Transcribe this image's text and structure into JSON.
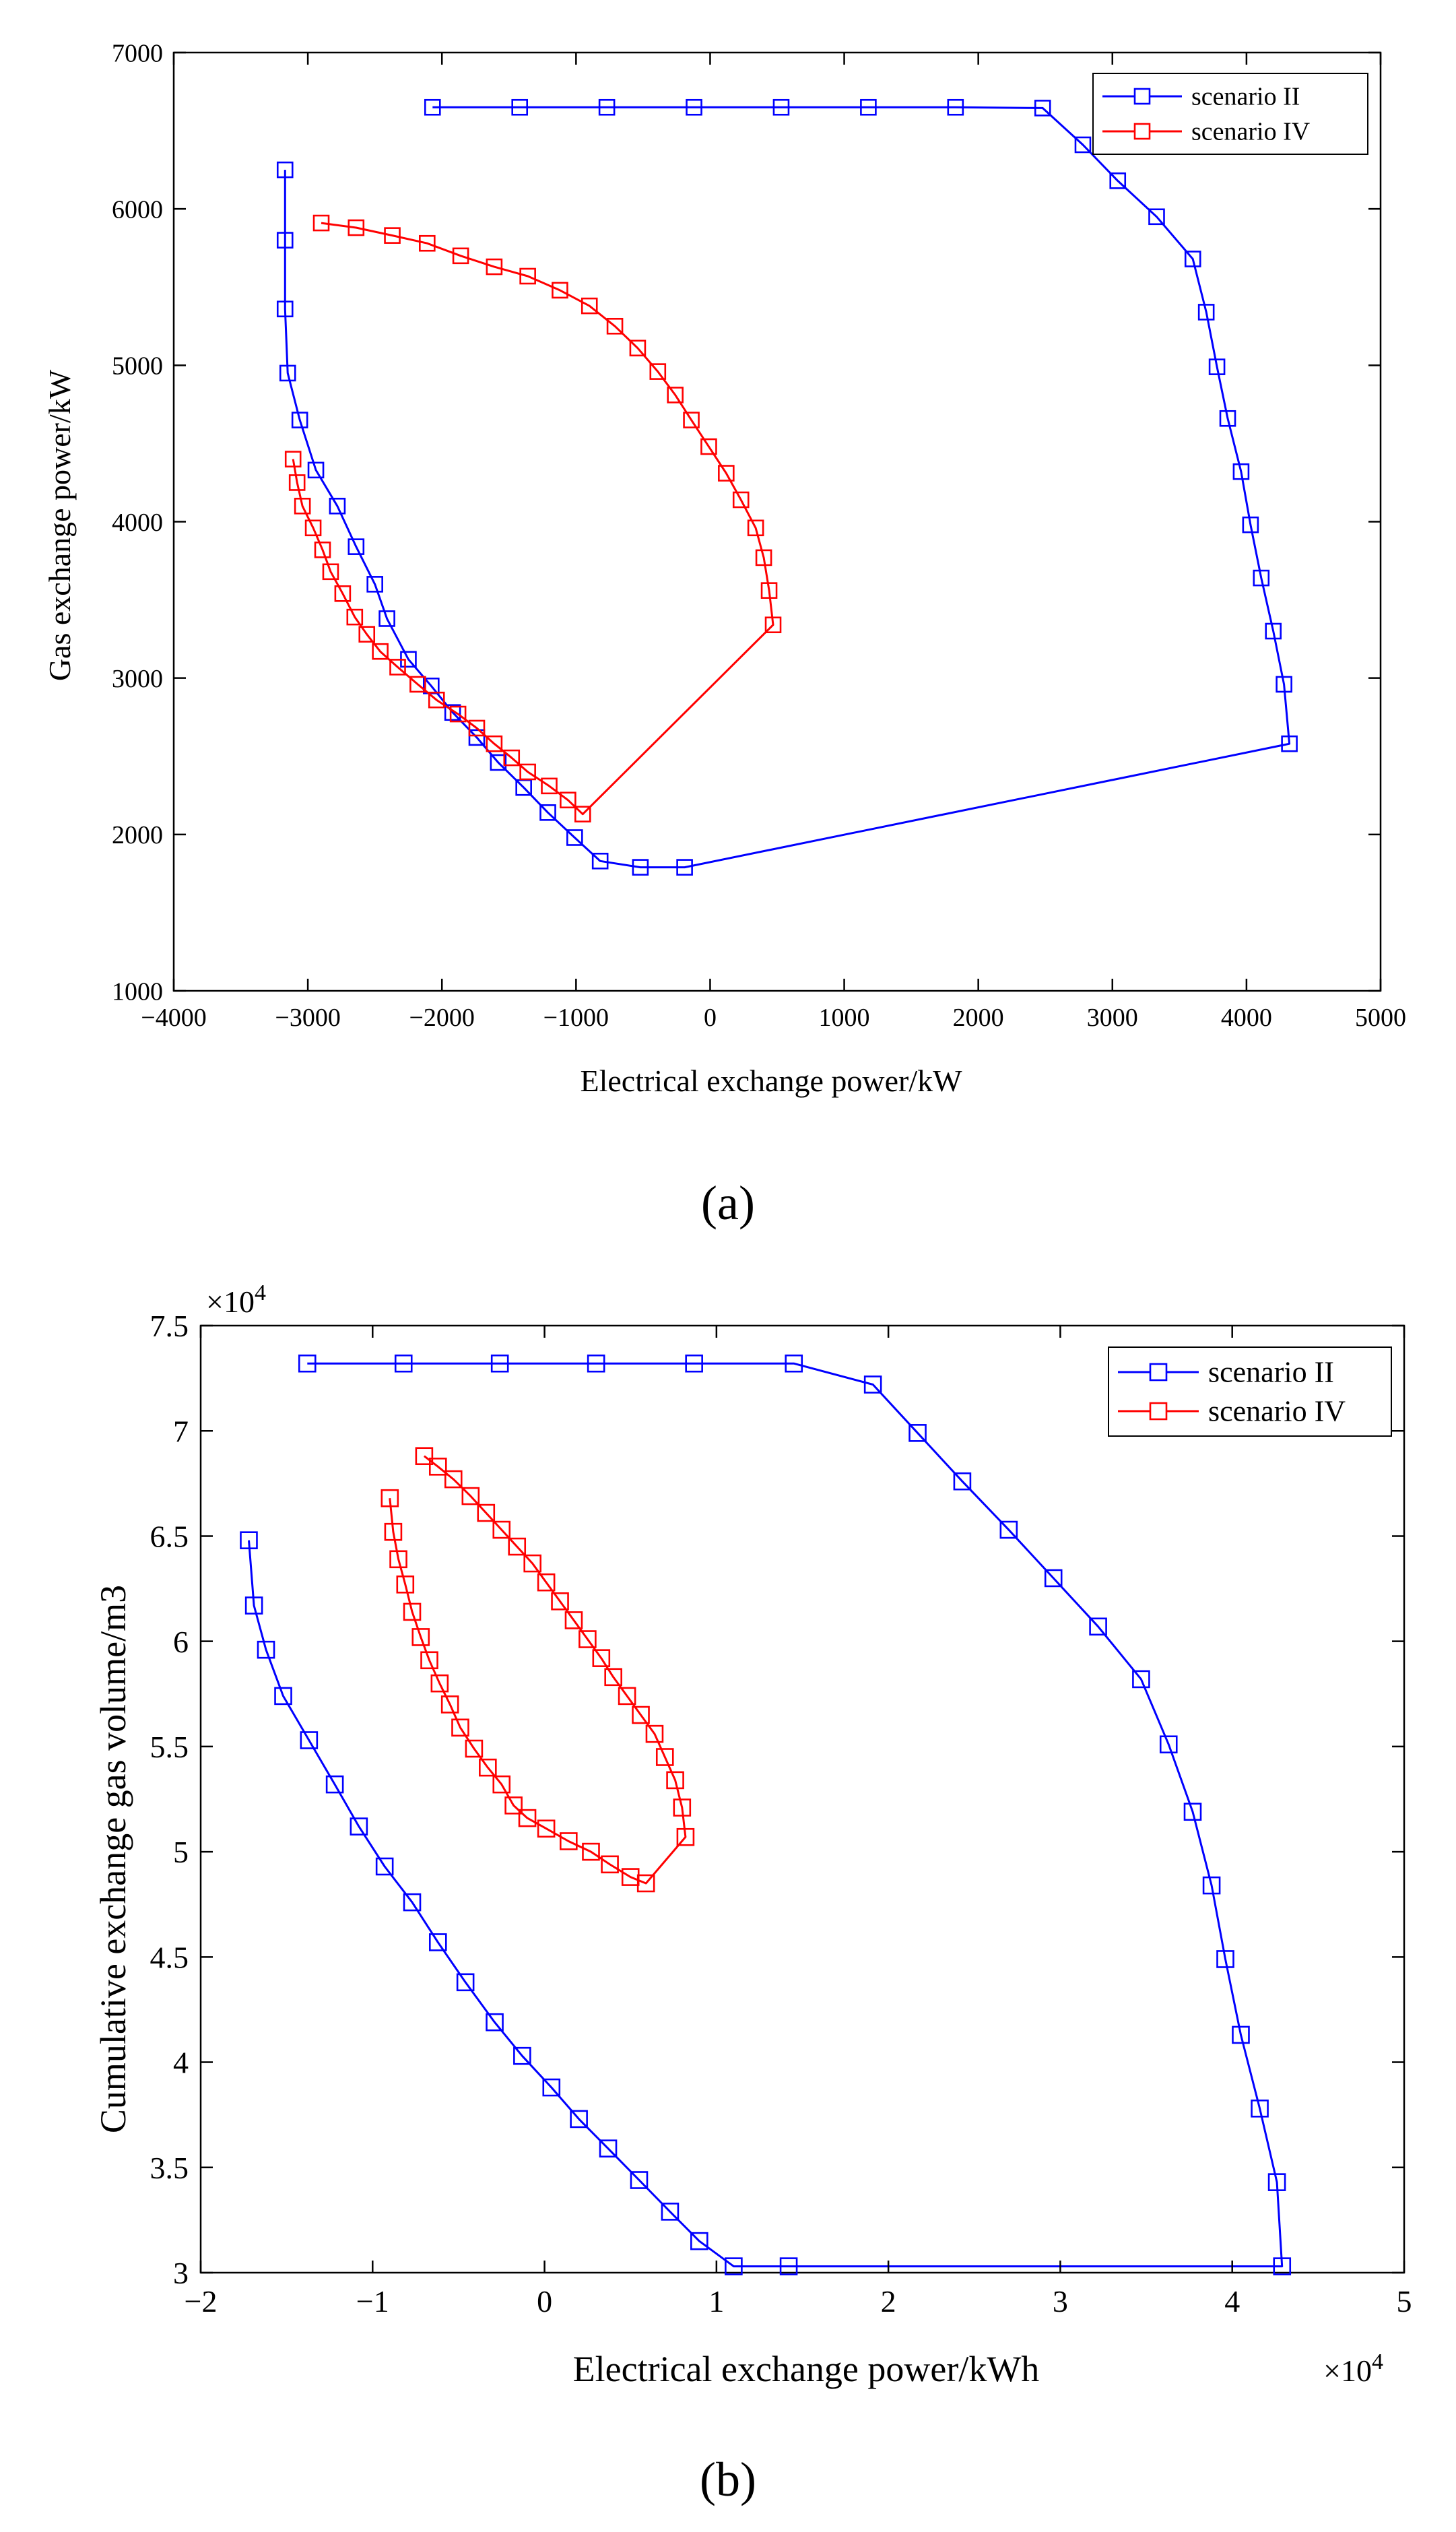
{
  "figure": {
    "background": "#ffffff"
  },
  "chart_data": [
    {
      "panel_label": "(a)",
      "type": "line",
      "title": "",
      "xlabel": "Electrical exchange power/kW",
      "ylabel": "Gas exchange power/kW",
      "xlim": [
        -4000,
        5000
      ],
      "ylim": [
        1000,
        7000
      ],
      "xticks": [
        -4000,
        -3000,
        -2000,
        -1000,
        0,
        1000,
        2000,
        3000,
        4000,
        5000
      ],
      "yticks": [
        1000,
        2000,
        3000,
        4000,
        5000,
        6000,
        7000
      ],
      "xtick_labels": [
        "−4000",
        "−3000",
        "−2000",
        "−1000",
        "0",
        "1000",
        "2000",
        "3000",
        "4000",
        "5000"
      ],
      "ytick_labels": [
        "1000",
        "2000",
        "3000",
        "4000",
        "5000",
        "6000",
        "7000"
      ],
      "grid": false,
      "legend_position": "top-right",
      "series": [
        {
          "name": "scenario II",
          "color": "#0000ff",
          "marker": "square",
          "points": [
            [
              -2070,
              6650
            ],
            [
              -1420,
              6650
            ],
            [
              -770,
              6650
            ],
            [
              -120,
              6650
            ],
            [
              530,
              6650
            ],
            [
              1180,
              6650
            ],
            [
              1830,
              6650
            ],
            [
              2480,
              6645
            ],
            [
              2780,
              6410
            ],
            [
              3040,
              6180
            ],
            [
              3330,
              5950
            ],
            [
              3600,
              5680
            ],
            [
              3700,
              5340
            ],
            [
              3780,
              4990
            ],
            [
              3860,
              4660
            ],
            [
              3960,
              4320
            ],
            [
              4030,
              3980
            ],
            [
              4110,
              3640
            ],
            [
              4200,
              3300
            ],
            [
              4280,
              2960
            ],
            [
              4320,
              2580
            ],
            [
              -190,
              1790
            ],
            [
              -520,
              1790
            ],
            [
              -820,
              1830
            ],
            [
              -1010,
              1980
            ],
            [
              -1210,
              2140
            ],
            [
              -1390,
              2300
            ],
            [
              -1580,
              2460
            ],
            [
              -1740,
              2620
            ],
            [
              -1920,
              2780
            ],
            [
              -2080,
              2950
            ],
            [
              -2250,
              3120
            ],
            [
              -2410,
              3380
            ],
            [
              -2500,
              3600
            ],
            [
              -2640,
              3840
            ],
            [
              -2780,
              4100
            ],
            [
              -2940,
              4330
            ],
            [
              -3060,
              4650
            ],
            [
              -3150,
              4950
            ],
            [
              -3170,
              5360
            ],
            [
              -3170,
              5800
            ],
            [
              -3170,
              6250
            ]
          ]
        },
        {
          "name": "scenario IV",
          "color": "#ff0000",
          "marker": "square",
          "points": [
            [
              -2900,
              5910
            ],
            [
              -2640,
              5880
            ],
            [
              -2370,
              5830
            ],
            [
              -2110,
              5780
            ],
            [
              -1860,
              5700
            ],
            [
              -1610,
              5630
            ],
            [
              -1360,
              5570
            ],
            [
              -1120,
              5480
            ],
            [
              -900,
              5380
            ],
            [
              -710,
              5250
            ],
            [
              -540,
              5110
            ],
            [
              -390,
              4960
            ],
            [
              -260,
              4810
            ],
            [
              -140,
              4650
            ],
            [
              -10,
              4480
            ],
            [
              120,
              4310
            ],
            [
              230,
              4140
            ],
            [
              340,
              3960
            ],
            [
              400,
              3770
            ],
            [
              440,
              3560
            ],
            [
              470,
              3340
            ],
            [
              -950,
              2130
            ],
            [
              -1060,
              2220
            ],
            [
              -1200,
              2310
            ],
            [
              -1360,
              2400
            ],
            [
              -1480,
              2490
            ],
            [
              -1610,
              2580
            ],
            [
              -1740,
              2680
            ],
            [
              -1880,
              2770
            ],
            [
              -2040,
              2860
            ],
            [
              -2180,
              2960
            ],
            [
              -2330,
              3070
            ],
            [
              -2460,
              3170
            ],
            [
              -2560,
              3280
            ],
            [
              -2650,
              3390
            ],
            [
              -2740,
              3540
            ],
            [
              -2830,
              3680
            ],
            [
              -2890,
              3820
            ],
            [
              -2960,
              3960
            ],
            [
              -3040,
              4100
            ],
            [
              -3080,
              4250
            ],
            [
              -3110,
              4400
            ]
          ]
        }
      ]
    },
    {
      "panel_label": "(b)",
      "type": "line",
      "title": "",
      "xlabel": "Electrical exchange power/kWh",
      "ylabel": "Cumulative exchange gas volume/m3",
      "x_multiplier_base": "×10",
      "x_multiplier_exp": "4",
      "y_multiplier_base": "×10",
      "y_multiplier_exp": "4",
      "xlim": [
        -2,
        5
      ],
      "ylim": [
        3,
        7.5
      ],
      "xticks": [
        -2,
        -1,
        0,
        1,
        2,
        3,
        4,
        5
      ],
      "yticks": [
        3,
        3.5,
        4,
        4.5,
        5,
        5.5,
        6,
        6.5,
        7,
        7.5
      ],
      "xtick_labels": [
        "−2",
        "−1",
        "0",
        "1",
        "2",
        "3",
        "4",
        "5"
      ],
      "ytick_labels": [
        "3",
        "3.5",
        "4",
        "4.5",
        "5",
        "5.5",
        "6",
        "6.5",
        "7",
        "7.5"
      ],
      "grid": false,
      "legend_position": "top-right",
      "series": [
        {
          "name": "scenario II",
          "color": "#0000ff",
          "marker": "square",
          "points": [
            [
              -1.38,
              7.32
            ],
            [
              -0.82,
              7.32
            ],
            [
              -0.26,
              7.32
            ],
            [
              0.3,
              7.32
            ],
            [
              0.87,
              7.32
            ],
            [
              1.45,
              7.32
            ],
            [
              1.91,
              7.22
            ],
            [
              2.17,
              6.99
            ],
            [
              2.43,
              6.76
            ],
            [
              2.7,
              6.53
            ],
            [
              2.96,
              6.3
            ],
            [
              3.22,
              6.07
            ],
            [
              3.47,
              5.82
            ],
            [
              3.63,
              5.51
            ],
            [
              3.77,
              5.19
            ],
            [
              3.88,
              4.84
            ],
            [
              3.96,
              4.49
            ],
            [
              4.05,
              4.13
            ],
            [
              4.16,
              3.78
            ],
            [
              4.26,
              3.43
            ],
            [
              4.29,
              3.03
            ],
            [
              1.42,
              3.03
            ],
            [
              1.1,
              3.03
            ],
            [
              0.9,
              3.15
            ],
            [
              0.73,
              3.29
            ],
            [
              0.55,
              3.44
            ],
            [
              0.37,
              3.59
            ],
            [
              0.2,
              3.73
            ],
            [
              0.04,
              3.88
            ],
            [
              -0.13,
              4.03
            ],
            [
              -0.29,
              4.19
            ],
            [
              -0.46,
              4.38
            ],
            [
              -0.62,
              4.57
            ],
            [
              -0.77,
              4.76
            ],
            [
              -0.93,
              4.93
            ],
            [
              -1.08,
              5.12
            ],
            [
              -1.22,
              5.32
            ],
            [
              -1.37,
              5.53
            ],
            [
              -1.52,
              5.74
            ],
            [
              -1.62,
              5.96
            ],
            [
              -1.69,
              6.17
            ],
            [
              -1.72,
              6.48
            ]
          ]
        },
        {
          "name": "scenario IV",
          "color": "#ff0000",
          "marker": "square",
          "points": [
            [
              -0.7,
              6.88
            ],
            [
              -0.62,
              6.83
            ],
            [
              -0.53,
              6.77
            ],
            [
              -0.43,
              6.69
            ],
            [
              -0.34,
              6.61
            ],
            [
              -0.25,
              6.53
            ],
            [
              -0.16,
              6.45
            ],
            [
              -0.07,
              6.37
            ],
            [
              0.01,
              6.28
            ],
            [
              0.09,
              6.19
            ],
            [
              0.17,
              6.1
            ],
            [
              0.25,
              6.01
            ],
            [
              0.33,
              5.92
            ],
            [
              0.4,
              5.83
            ],
            [
              0.48,
              5.74
            ],
            [
              0.56,
              5.65
            ],
            [
              0.64,
              5.56
            ],
            [
              0.7,
              5.45
            ],
            [
              0.76,
              5.34
            ],
            [
              0.8,
              5.21
            ],
            [
              0.82,
              5.07
            ],
            [
              0.59,
              4.85
            ],
            [
              0.5,
              4.88
            ],
            [
              0.38,
              4.94
            ],
            [
              0.27,
              5.0
            ],
            [
              0.14,
              5.05
            ],
            [
              0.01,
              5.11
            ],
            [
              -0.1,
              5.16
            ],
            [
              -0.18,
              5.22
            ],
            [
              -0.25,
              5.32
            ],
            [
              -0.33,
              5.4
            ],
            [
              -0.41,
              5.49
            ],
            [
              -0.49,
              5.59
            ],
            [
              -0.55,
              5.7
            ],
            [
              -0.61,
              5.8
            ],
            [
              -0.67,
              5.91
            ],
            [
              -0.72,
              6.02
            ],
            [
              -0.77,
              6.14
            ],
            [
              -0.81,
              6.27
            ],
            [
              -0.85,
              6.39
            ],
            [
              -0.88,
              6.52
            ],
            [
              -0.9,
              6.68
            ]
          ]
        }
      ]
    }
  ]
}
